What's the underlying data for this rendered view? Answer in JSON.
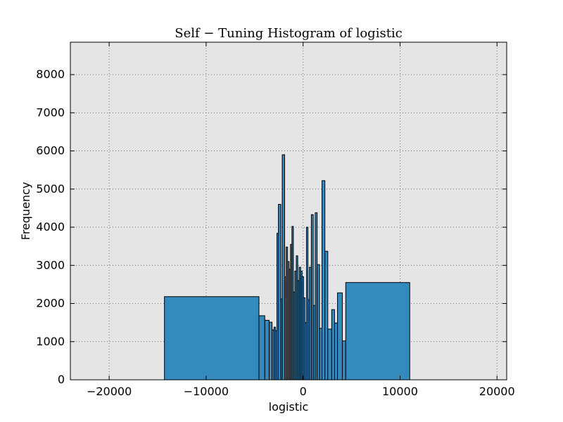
{
  "chart_data": {
    "type": "bar",
    "title": "Self − Tuning Histogram of logistic",
    "xlabel": "logistic",
    "ylabel": "Frequency",
    "xlim": [
      -24000,
      21000
    ],
    "ylim": [
      0,
      8850
    ],
    "xticks": [
      -20000,
      -10000,
      0,
      10000,
      20000
    ],
    "xtick_labels": [
      "−20000",
      "−10000",
      "0",
      "10000",
      "20000"
    ],
    "yticks": [
      0,
      1000,
      2000,
      3000,
      4000,
      5000,
      6000,
      7000,
      8000
    ],
    "ytick_labels": [
      "0",
      "1000",
      "2000",
      "3000",
      "4000",
      "5000",
      "6000",
      "7000",
      "8000"
    ],
    "grid": true,
    "legend": "none",
    "colors": {
      "bar": "#348abd",
      "edge": "#000000",
      "plot_bg": "#e5e5e5"
    },
    "bins": [
      {
        "x0": -14300,
        "x1": -4550,
        "count": 2180
      },
      {
        "x0": -4550,
        "x1": -3950,
        "count": 1680
      },
      {
        "x0": -3950,
        "x1": -3500,
        "count": 1560
      },
      {
        "x0": -3500,
        "x1": -3200,
        "count": 1510
      },
      {
        "x0": -3200,
        "x1": -3000,
        "count": 1310
      },
      {
        "x0": -3000,
        "x1": -2850,
        "count": 1380
      },
      {
        "x0": -2850,
        "x1": -2700,
        "count": 1290
      },
      {
        "x0": -2700,
        "x1": -2550,
        "count": 3840
      },
      {
        "x0": -2550,
        "x1": -2300,
        "count": 4600
      },
      {
        "x0": -2300,
        "x1": -2150,
        "count": 2120
      },
      {
        "x0": -2150,
        "x1": -1900,
        "count": 5900
      },
      {
        "x0": -1900,
        "x1": -1750,
        "count": 2700
      },
      {
        "x0": -1750,
        "x1": -1600,
        "count": 3480
      },
      {
        "x0": -1600,
        "x1": -1450,
        "count": 3100
      },
      {
        "x0": -1450,
        "x1": -1300,
        "count": 2900
      },
      {
        "x0": -1300,
        "x1": -1150,
        "count": 3550
      },
      {
        "x0": -1150,
        "x1": -1000,
        "count": 4020
      },
      {
        "x0": -1000,
        "x1": -850,
        "count": 2300
      },
      {
        "x0": -850,
        "x1": -700,
        "count": 2850
      },
      {
        "x0": -700,
        "x1": -550,
        "count": 3250
      },
      {
        "x0": -550,
        "x1": -400,
        "count": 2600
      },
      {
        "x0": -400,
        "x1": -250,
        "count": 2950
      },
      {
        "x0": -250,
        "x1": -100,
        "count": 2850
      },
      {
        "x0": -100,
        "x1": 50,
        "count": 2700
      },
      {
        "x0": 50,
        "x1": 200,
        "count": 2150
      },
      {
        "x0": 200,
        "x1": 350,
        "count": 1500
      },
      {
        "x0": 350,
        "x1": 500,
        "count": 4000
      },
      {
        "x0": 500,
        "x1": 650,
        "count": 2100
      },
      {
        "x0": 650,
        "x1": 850,
        "count": 2950
      },
      {
        "x0": 850,
        "x1": 1050,
        "count": 4330
      },
      {
        "x0": 1050,
        "x1": 1250,
        "count": 1950
      },
      {
        "x0": 1250,
        "x1": 1450,
        "count": 4380
      },
      {
        "x0": 1450,
        "x1": 1700,
        "count": 3020
      },
      {
        "x0": 1700,
        "x1": 1950,
        "count": 1350
      },
      {
        "x0": 1950,
        "x1": 2250,
        "count": 5220
      },
      {
        "x0": 2250,
        "x1": 2550,
        "count": 3370
      },
      {
        "x0": 2550,
        "x1": 2950,
        "count": 1330
      },
      {
        "x0": 2950,
        "x1": 3250,
        "count": 1840
      },
      {
        "x0": 3250,
        "x1": 3550,
        "count": 1490
      },
      {
        "x0": 3550,
        "x1": 4050,
        "count": 2280
      },
      {
        "x0": 4050,
        "x1": 4400,
        "count": 1020
      },
      {
        "x0": 4400,
        "x1": 11000,
        "count": 2550
      }
    ]
  }
}
